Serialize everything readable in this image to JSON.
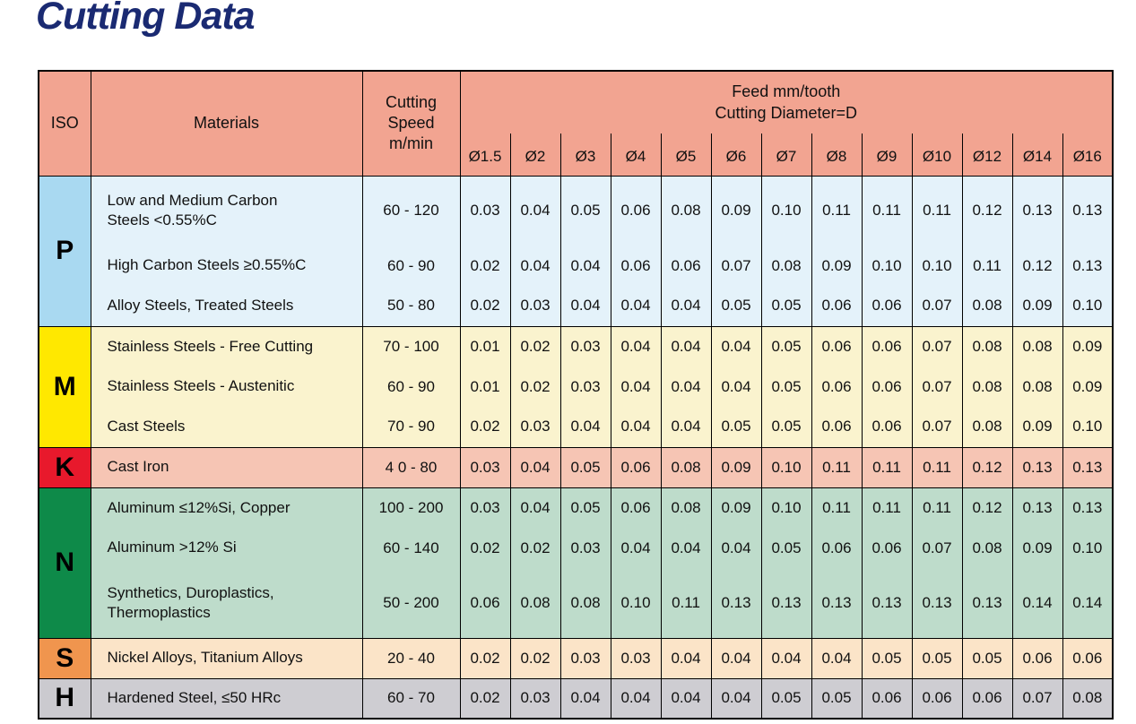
{
  "page": {
    "title": "Cutting Data",
    "title_color": "#1a2a72"
  },
  "table": {
    "header_bg": "#F2A491",
    "headers": {
      "iso": "ISO",
      "materials": "Materials",
      "cutting_speed": "Cutting\nSpeed\nm/min",
      "feed": "Feed mm/tooth\nCutting Diameter=D",
      "diameters": [
        "Ø1.5",
        "Ø2",
        "Ø3",
        "Ø4",
        "Ø5",
        "Ø6",
        "Ø7",
        "Ø8",
        "Ø9",
        "Ø10",
        "Ø12",
        "Ø14",
        "Ø16"
      ]
    },
    "groups": [
      {
        "iso": "P",
        "iso_color": "#A9D9F1",
        "row_color": "#E4F2FA",
        "rows": [
          {
            "material": "Low and Medium Carbon\nSteels <0.55%C",
            "speed": "60 - 120",
            "feeds": [
              "0.03",
              "0.04",
              "0.05",
              "0.06",
              "0.08",
              "0.09",
              "0.10",
              "0.11",
              "0.11",
              "0.11",
              "0.12",
              "0.13",
              "0.13"
            ]
          },
          {
            "material": "High Carbon Steels ≥0.55%C",
            "speed": "60 - 90",
            "feeds": [
              "0.02",
              "0.04",
              "0.04",
              "0.06",
              "0.06",
              "0.07",
              "0.08",
              "0.09",
              "0.10",
              "0.10",
              "0.11",
              "0.12",
              "0.13"
            ]
          },
          {
            "material": "Alloy Steels, Treated Steels",
            "speed": "50 - 80",
            "feeds": [
              "0.02",
              "0.03",
              "0.04",
              "0.04",
              "0.04",
              "0.05",
              "0.05",
              "0.06",
              "0.06",
              "0.07",
              "0.08",
              "0.09",
              "0.10"
            ]
          }
        ]
      },
      {
        "iso": "M",
        "iso_color": "#FFE800",
        "row_color": "#FAF3CE",
        "rows": [
          {
            "material": "Stainless Steels - Free Cutting",
            "speed": "70 - 100",
            "feeds": [
              "0.01",
              "0.02",
              "0.03",
              "0.04",
              "0.04",
              "0.04",
              "0.05",
              "0.06",
              "0.06",
              "0.07",
              "0.08",
              "0.08",
              "0.09"
            ]
          },
          {
            "material": "Stainless Steels - Austenitic",
            "speed": "60 - 90",
            "feeds": [
              "0.01",
              "0.02",
              "0.03",
              "0.04",
              "0.04",
              "0.04",
              "0.05",
              "0.06",
              "0.06",
              "0.07",
              "0.08",
              "0.08",
              "0.09"
            ]
          },
          {
            "material": "Cast Steels",
            "speed": "70 - 90",
            "feeds": [
              "0.02",
              "0.03",
              "0.04",
              "0.04",
              "0.04",
              "0.05",
              "0.05",
              "0.06",
              "0.06",
              "0.07",
              "0.08",
              "0.09",
              "0.10"
            ]
          }
        ]
      },
      {
        "iso": "K",
        "iso_color": "#E8192C",
        "row_color": "#F6C5B4",
        "rows": [
          {
            "material": "Cast Iron",
            "speed": "4 0 - 80",
            "feeds": [
              "0.03",
              "0.04",
              "0.05",
              "0.06",
              "0.08",
              "0.09",
              "0.10",
              "0.11",
              "0.11",
              "0.11",
              "0.12",
              "0.13",
              "0.13"
            ]
          }
        ]
      },
      {
        "iso": "N",
        "iso_color": "#0E8A49",
        "row_color": "#BEDCCB",
        "rows": [
          {
            "material": "Aluminum ≤12%Si, Copper",
            "speed": "100 - 200",
            "feeds": [
              "0.03",
              "0.04",
              "0.05",
              "0.06",
              "0.08",
              "0.09",
              "0.10",
              "0.11",
              "0.11",
              "0.11",
              "0.12",
              "0.13",
              "0.13"
            ]
          },
          {
            "material": "Aluminum >12% Si",
            "speed": "60 - 140",
            "feeds": [
              "0.02",
              "0.02",
              "0.03",
              "0.04",
              "0.04",
              "0.04",
              "0.05",
              "0.06",
              "0.06",
              "0.07",
              "0.08",
              "0.09",
              "0.10"
            ]
          },
          {
            "material": "Synthetics, Duroplastics,\nThermoplastics",
            "speed": "50 - 200",
            "feeds": [
              "0.06",
              "0.08",
              "0.08",
              "0.10",
              "0.11",
              "0.13",
              "0.13",
              "0.13",
              "0.13",
              "0.13",
              "0.13",
              "0.14",
              "0.14"
            ]
          }
        ]
      },
      {
        "iso": "S",
        "iso_color": "#F0954E",
        "row_color": "#FBE4C8",
        "rows": [
          {
            "material": "Nickel Alloys, Titanium Alloys",
            "speed": "20 - 40",
            "feeds": [
              "0.02",
              "0.02",
              "0.03",
              "0.03",
              "0.04",
              "0.04",
              "0.04",
              "0.04",
              "0.05",
              "0.05",
              "0.05",
              "0.06",
              "0.06"
            ]
          }
        ]
      },
      {
        "iso": "H",
        "iso_color": "#CBCACF",
        "row_color": "#CECDD2",
        "rows": [
          {
            "material": "Hardened Steel, ≤50 HRc",
            "speed": "60 - 70",
            "feeds": [
              "0.02",
              "0.03",
              "0.04",
              "0.04",
              "0.04",
              "0.04",
              "0.05",
              "0.05",
              "0.06",
              "0.06",
              "0.06",
              "0.07",
              "0.08"
            ]
          }
        ]
      }
    ]
  }
}
